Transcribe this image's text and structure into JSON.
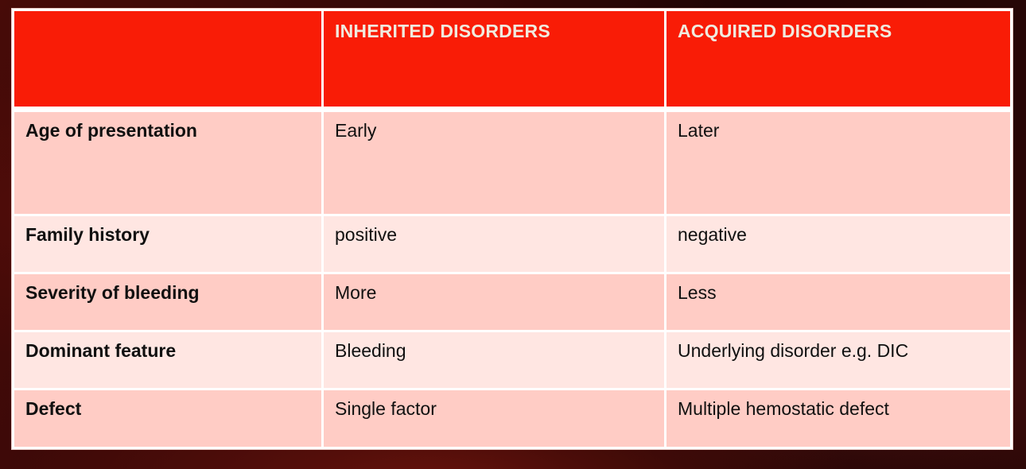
{
  "table": {
    "columns": [
      {
        "label": ""
      },
      {
        "label": "INHERITED DISORDERS"
      },
      {
        "label": "ACQUIRED DISORDERS"
      }
    ],
    "rows": [
      {
        "label": "Age of presentation",
        "inherited": "Early",
        "acquired": "Later"
      },
      {
        "label": "Family history",
        "inherited": "positive",
        "acquired": "negative"
      },
      {
        "label": "Severity of bleeding",
        "inherited": "More",
        "acquired": "Less"
      },
      {
        "label": "Dominant feature",
        "inherited": "Bleeding",
        "acquired": "Underlying disorder e.g. DIC"
      },
      {
        "label": "Defect",
        "inherited": "Single factor",
        "acquired": "Multiple hemostatic defect"
      }
    ],
    "colors": {
      "header_bg": "#f91c06",
      "header_text": "#f0ebdf",
      "row_odd_bg": "#ffccc5",
      "row_even_bg": "#ffe6e2",
      "grid": "#ffffff",
      "body_text": "#101010",
      "slide_background": "#3c0807"
    }
  }
}
